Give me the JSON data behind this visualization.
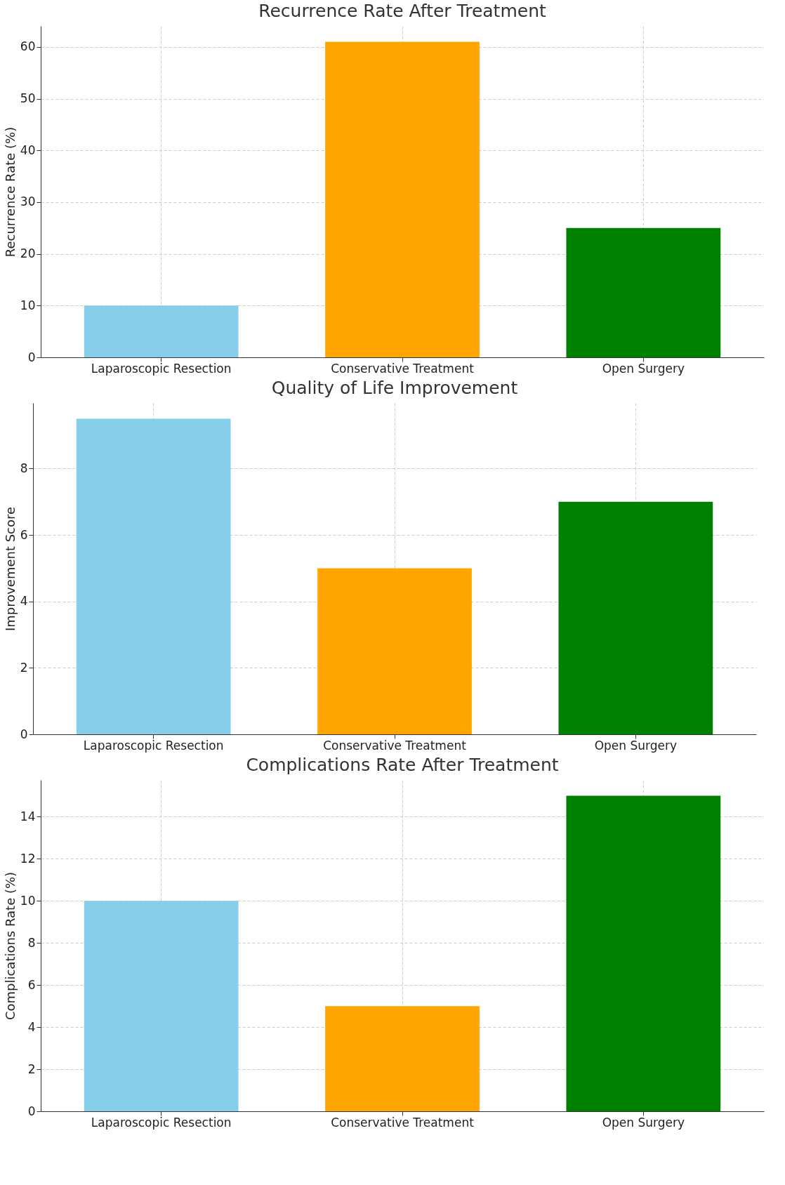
{
  "chart_data": [
    {
      "type": "bar",
      "title": "Recurrence Rate After Treatment",
      "ylabel": "Recurrence Rate (%)",
      "categories": [
        "Laparoscopic Resection",
        "Conservative Treatment",
        "Open Surgery"
      ],
      "values": [
        10,
        61,
        25
      ],
      "colors": [
        "#87ceeb",
        "#ffa500",
        "#008000"
      ],
      "ylim": [
        0,
        64.05
      ],
      "yticks": [
        0,
        10,
        20,
        30,
        40,
        50,
        60
      ],
      "grid": true
    },
    {
      "type": "bar",
      "title": "Quality of Life Improvement",
      "ylabel": "Improvement Score",
      "categories": [
        "Laparoscopic Resection",
        "Conservative Treatment",
        "Open Surgery"
      ],
      "values": [
        9.5,
        5,
        7
      ],
      "colors": [
        "#87ceeb",
        "#ffa500",
        "#008000"
      ],
      "ylim": [
        0,
        9.975
      ],
      "yticks": [
        0,
        2,
        4,
        6,
        8
      ],
      "grid": true
    },
    {
      "type": "bar",
      "title": "Complications Rate After Treatment",
      "ylabel": "Complications Rate (%)",
      "categories": [
        "Laparoscopic Resection",
        "Conservative Treatment",
        "Open Surgery"
      ],
      "values": [
        10,
        5,
        15
      ],
      "colors": [
        "#87ceeb",
        "#ffa500",
        "#008000"
      ],
      "ylim": [
        0,
        15.75
      ],
      "yticks": [
        0,
        2,
        4,
        6,
        8,
        10,
        12,
        14
      ],
      "grid": true
    }
  ]
}
